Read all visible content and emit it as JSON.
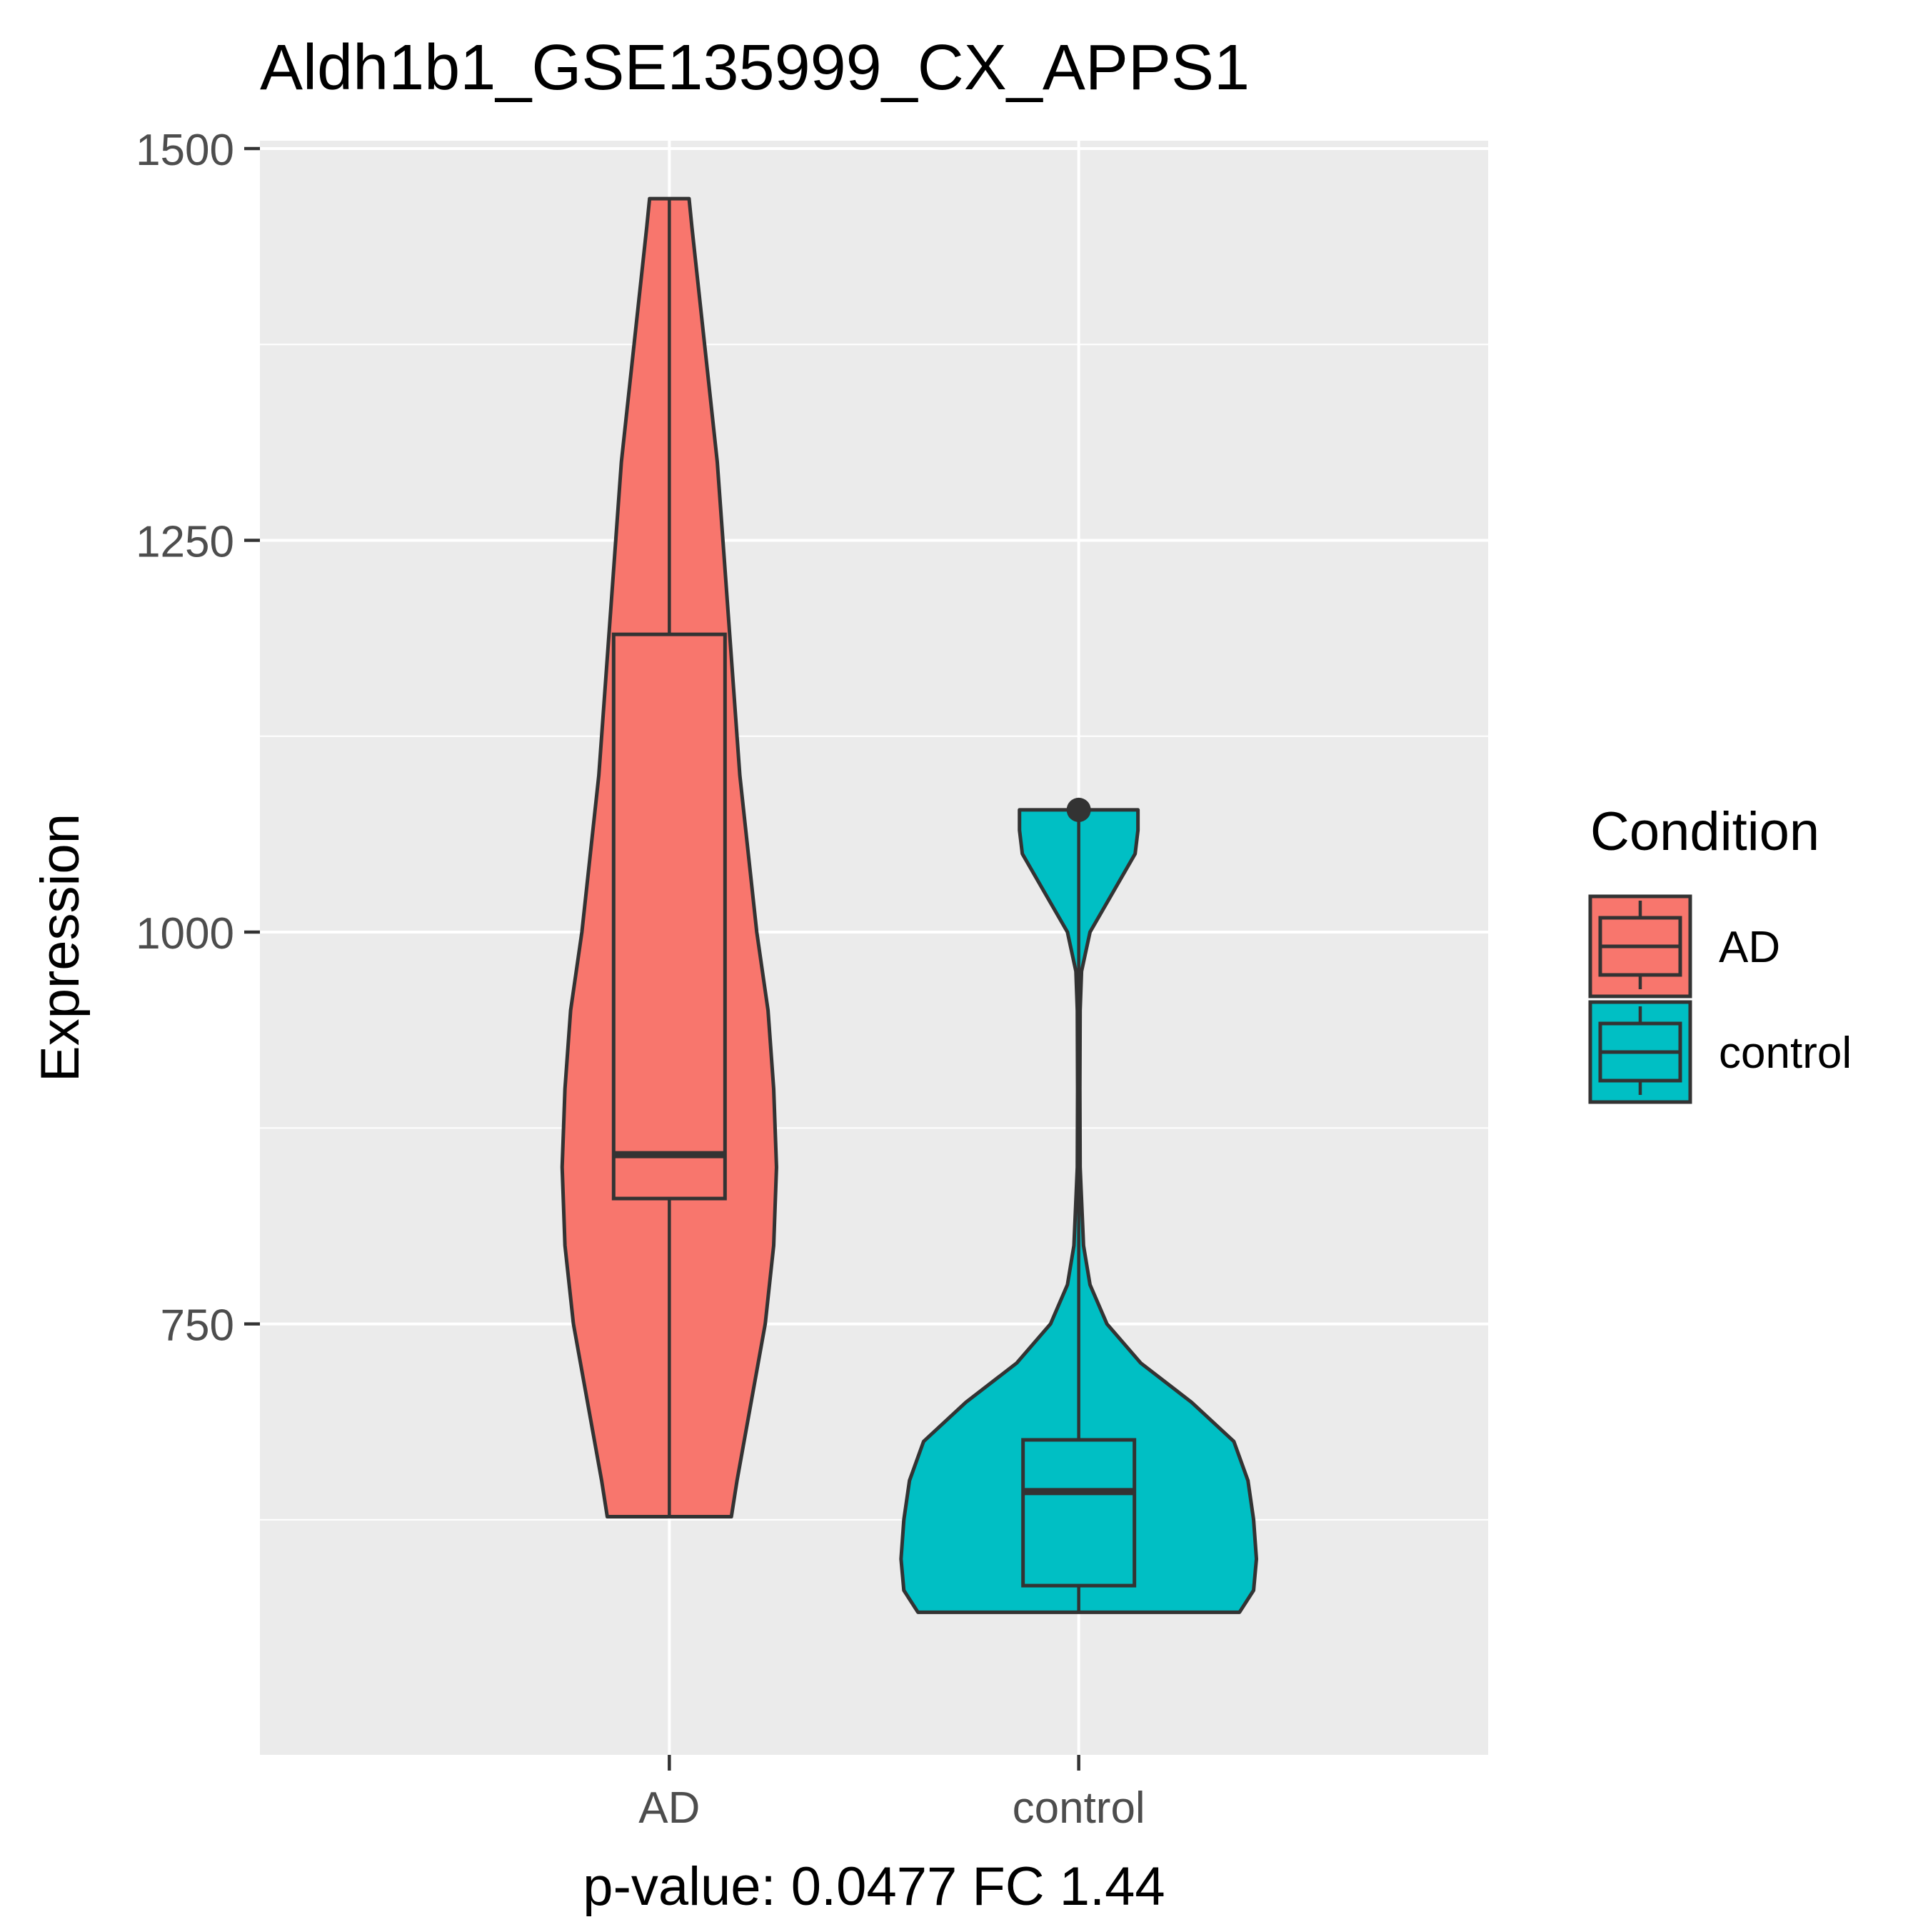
{
  "chart_data": {
    "type": "violin",
    "title": "Aldh1b1_GSE135999_CX_APPS1",
    "xlabel": "p-value: 0.0477 FC 1.44",
    "ylabel": "Expression",
    "ylim": [
      475,
      1505
    ],
    "yticks": [
      750,
      1000,
      1250,
      1500
    ],
    "grid": true,
    "legend": {
      "title": "Condition",
      "position": "right",
      "items": [
        "AD",
        "control"
      ]
    },
    "categories": [
      "AD",
      "control"
    ],
    "series": [
      {
        "name": "AD",
        "color": "#F8766D",
        "violin": [
          [
            627,
            0.22
          ],
          [
            650,
            0.24
          ],
          [
            700,
            0.29
          ],
          [
            750,
            0.34
          ],
          [
            800,
            0.37
          ],
          [
            850,
            0.38
          ],
          [
            900,
            0.37
          ],
          [
            950,
            0.35
          ],
          [
            1000,
            0.31
          ],
          [
            1050,
            0.28
          ],
          [
            1100,
            0.25
          ],
          [
            1150,
            0.23
          ],
          [
            1200,
            0.21
          ],
          [
            1250,
            0.19
          ],
          [
            1300,
            0.17
          ],
          [
            1350,
            0.14
          ],
          [
            1400,
            0.11
          ],
          [
            1450,
            0.08
          ],
          [
            1468,
            0.07
          ]
        ],
        "box": {
          "min": 627,
          "q1": 830,
          "median": 858,
          "q3": 1190,
          "max": 1468
        },
        "outliers": []
      },
      {
        "name": "control",
        "color": "#00BFC4",
        "violin": [
          [
            566,
            0.57
          ],
          [
            580,
            0.62
          ],
          [
            600,
            0.63
          ],
          [
            625,
            0.62
          ],
          [
            650,
            0.6
          ],
          [
            675,
            0.55
          ],
          [
            700,
            0.4
          ],
          [
            725,
            0.22
          ],
          [
            750,
            0.1
          ],
          [
            775,
            0.04
          ],
          [
            800,
            0.017
          ],
          [
            850,
            0.005
          ],
          [
            900,
            0.004
          ],
          [
            950,
            0.005
          ],
          [
            975,
            0.01
          ],
          [
            1000,
            0.04
          ],
          [
            1025,
            0.12
          ],
          [
            1050,
            0.2
          ],
          [
            1065,
            0.21
          ],
          [
            1078,
            0.21
          ]
        ],
        "box": {
          "min": 566,
          "q1": 583,
          "median": 643,
          "q3": 676,
          "max": 1078
        },
        "outliers": [
          1078
        ]
      }
    ]
  }
}
